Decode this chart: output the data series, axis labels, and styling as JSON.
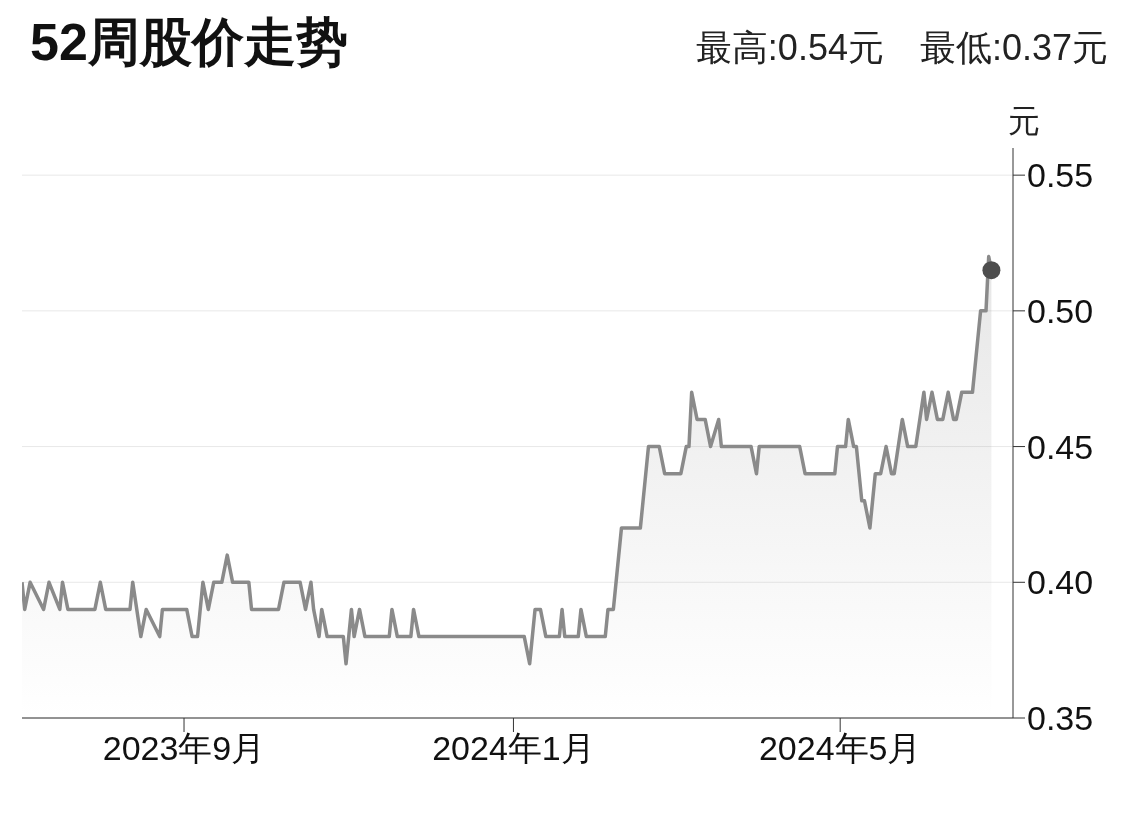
{
  "chart_data": {
    "type": "area",
    "title": "52周股价走势",
    "subtitle": "最高:0.54元　最低:0.37元",
    "ylabel": "元",
    "xlim": [
      "2023-07-03",
      "2024-07-04"
    ],
    "xticks": [
      {
        "value": "2023-09-01",
        "label": "2023年9月"
      },
      {
        "value": "2024-01-01",
        "label": "2024年1月"
      },
      {
        "value": "2024-05-01",
        "label": "2024年5月"
      }
    ],
    "ylim": [
      0.35,
      0.56
    ],
    "yticks": [
      0.35,
      {
        "value": 0.4,
        "label": "0.40"
      },
      0.45,
      {
        "value": 0.5,
        "label": "0.50"
      },
      0.55
    ],
    "grid": "y",
    "legend": false,
    "line_style": "solid",
    "series": [
      {
        "color": "#8a8a8a",
        "x": [
          "2023-07-03",
          "2023-07-04",
          "2023-07-06",
          "2023-07-11",
          "2023-07-13",
          "2023-07-17",
          "2023-07-18",
          "2023-07-20",
          "2023-07-30",
          "2023-08-01",
          "2023-08-03",
          "2023-08-12",
          "2023-08-13",
          "2023-08-16",
          "2023-08-18",
          "2023-08-23",
          "2023-08-24",
          "2023-09-02",
          "2023-09-04",
          "2023-09-06",
          "2023-09-08",
          "2023-09-10",
          "2023-09-12",
          "2023-09-15",
          "2023-09-17",
          "2023-09-19",
          "2023-09-25",
          "2023-09-26",
          "2023-10-06",
          "2023-10-08",
          "2023-10-14",
          "2023-10-16",
          "2023-10-18",
          "2023-10-19",
          "2023-10-21",
          "2023-10-22",
          "2023-10-24",
          "2023-10-30",
          "2023-10-31",
          "2023-11-02",
          "2023-11-03",
          "2023-11-05",
          "2023-11-07",
          "2023-11-16",
          "2023-11-17",
          "2023-11-19",
          "2023-11-24",
          "2023-11-25",
          "2023-11-27",
          "2024-01-05",
          "2024-01-07",
          "2024-01-09",
          "2024-01-11",
          "2024-01-13",
          "2024-01-18",
          "2024-01-19",
          "2024-01-20",
          "2024-01-25",
          "2024-01-26",
          "2024-01-28",
          "2024-02-04",
          "2024-02-05",
          "2024-02-07",
          "2024-02-10",
          "2024-02-17",
          "2024-02-20",
          "2024-02-24",
          "2024-02-26",
          "2024-03-03",
          "2024-03-05",
          "2024-03-06",
          "2024-03-07",
          "2024-03-09",
          "2024-03-12",
          "2024-03-14",
          "2024-03-17",
          "2024-03-18",
          "2024-03-29",
          "2024-03-31",
          "2024-04-01",
          "2024-04-16",
          "2024-04-18",
          "2024-04-29",
          "2024-04-30",
          "2024-05-03",
          "2024-05-04",
          "2024-05-06",
          "2024-05-07",
          "2024-05-09",
          "2024-05-10",
          "2024-05-12",
          "2024-05-14",
          "2024-05-16",
          "2024-05-18",
          "2024-05-20",
          "2024-05-21",
          "2024-05-24",
          "2024-05-26",
          "2024-05-29",
          "2024-06-01",
          "2024-06-02",
          "2024-06-04",
          "2024-06-06",
          "2024-06-08",
          "2024-06-10",
          "2024-06-12",
          "2024-06-13",
          "2024-06-15",
          "2024-06-19",
          "2024-06-22",
          "2024-06-24",
          "2024-06-25",
          "2024-06-26"
        ],
        "values": [
          0.4,
          0.39,
          0.4,
          0.39,
          0.4,
          0.39,
          0.4,
          0.39,
          0.39,
          0.4,
          0.39,
          0.39,
          0.4,
          0.38,
          0.39,
          0.38,
          0.39,
          0.39,
          0.38,
          0.38,
          0.4,
          0.39,
          0.4,
          0.4,
          0.41,
          0.4,
          0.4,
          0.39,
          0.39,
          0.4,
          0.4,
          0.39,
          0.4,
          0.39,
          0.38,
          0.39,
          0.38,
          0.38,
          0.37,
          0.39,
          0.38,
          0.39,
          0.38,
          0.38,
          0.39,
          0.38,
          0.38,
          0.39,
          0.38,
          0.38,
          0.37,
          0.39,
          0.39,
          0.38,
          0.38,
          0.39,
          0.38,
          0.38,
          0.39,
          0.38,
          0.38,
          0.39,
          0.39,
          0.42,
          0.42,
          0.45,
          0.45,
          0.44,
          0.44,
          0.45,
          0.45,
          0.47,
          0.46,
          0.46,
          0.45,
          0.46,
          0.45,
          0.45,
          0.44,
          0.45,
          0.45,
          0.44,
          0.44,
          0.45,
          0.45,
          0.46,
          0.45,
          0.45,
          0.43,
          0.43,
          0.42,
          0.44,
          0.44,
          0.45,
          0.44,
          0.44,
          0.46,
          0.45,
          0.45,
          0.47,
          0.46,
          0.47,
          0.46,
          0.46,
          0.47,
          0.46,
          0.46,
          0.47,
          0.47,
          0.5,
          0.5,
          0.52,
          0.515
        ]
      },
      {
        "type": "scatter",
        "marker": "circle",
        "color": "#4d4d4d",
        "x": [
          "2024-06-26"
        ],
        "values": [
          0.515
        ]
      }
    ]
  }
}
